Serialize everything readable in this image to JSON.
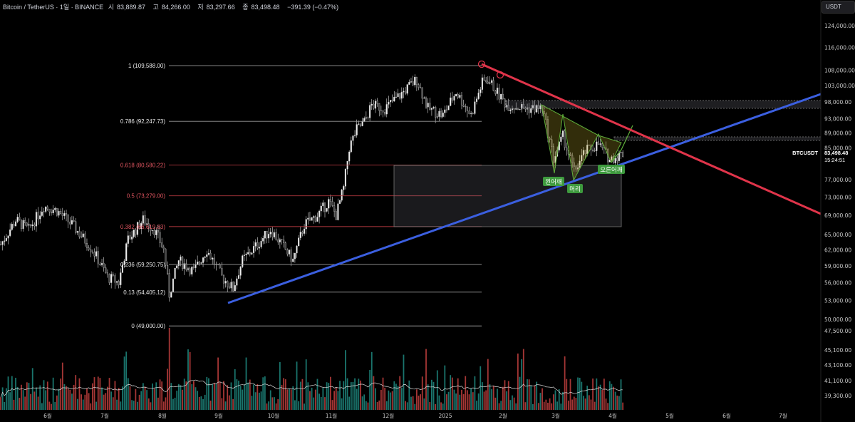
{
  "header": {
    "symbol": "Bitcoin / TetherUS · 1일 · BINANCE",
    "open_label": "시",
    "open": "83,889.87",
    "high_label": "고",
    "high": "84,266.00",
    "low_label": "저",
    "low": "83,297.66",
    "close_label": "종",
    "close": "83,498.48",
    "change": "−391.39 (−0.47%)"
  },
  "currency_button": "USDT",
  "last_price": {
    "symbol": "BTCUSDT",
    "price": "83,498.48",
    "countdown": "15:24:51"
  },
  "colors": {
    "up": "#26a69a",
    "down": "#ef5350",
    "fib_neutral": "#9a9a9a",
    "fib_red": "#b2383f",
    "trend_blue": "#3b5fe0",
    "trend_red": "#e0344a",
    "pattern": "#5fae3a"
  },
  "chart_data": {
    "type": "candlestick",
    "scale": "log",
    "price_axis_labels": [
      "124,000.00",
      "116,000.00",
      "108,000.00",
      "103,000.00",
      "98,000.00",
      "93,000.00",
      "89,000.00",
      "85,000.00",
      "77,000.00",
      "73,000.00",
      "69,000.00",
      "65,000.00",
      "62,000.00",
      "59,000.00",
      "56,000.00",
      "53,000.00",
      "50,000.00"
    ],
    "volume_axis_labels": [
      "47,500.00",
      "45,100.00",
      "43,100.00",
      "41,100.00",
      "39,300.00"
    ],
    "time_axis_labels": [
      "6월",
      "7월",
      "8월",
      "9월",
      "10월",
      "11월",
      "12월",
      "2025",
      "2월",
      "3월",
      "4월",
      "5월",
      "6월",
      "7월"
    ],
    "price_path_day_close": [
      [
        0,
        63000
      ],
      [
        8,
        68000
      ],
      [
        15,
        66000
      ],
      [
        23,
        71000
      ],
      [
        30,
        70000
      ],
      [
        38,
        67000
      ],
      [
        49,
        62000
      ],
      [
        57,
        57000
      ],
      [
        63,
        56000
      ],
      [
        68,
        64000
      ],
      [
        76,
        68000
      ],
      [
        82,
        66000
      ],
      [
        87,
        62000
      ],
      [
        90,
        54000
      ],
      [
        95,
        60000
      ],
      [
        103,
        58000
      ],
      [
        110,
        62000
      ],
      [
        118,
        57000
      ],
      [
        124,
        55000
      ],
      [
        129,
        60000
      ],
      [
        137,
        63000
      ],
      [
        144,
        66000
      ],
      [
        152,
        62000
      ],
      [
        156,
        60000
      ],
      [
        162,
        67000
      ],
      [
        169,
        69000
      ],
      [
        175,
        72000
      ],
      [
        179,
        69000
      ],
      [
        183,
        75000
      ],
      [
        186,
        85000
      ],
      [
        190,
        90000
      ],
      [
        194,
        92000
      ],
      [
        198,
        97000
      ],
      [
        205,
        96000
      ],
      [
        213,
        100000
      ],
      [
        222,
        105000
      ],
      [
        228,
        96000
      ],
      [
        236,
        94000
      ],
      [
        243,
        101000
      ],
      [
        251,
        94000
      ],
      [
        257,
        104000
      ],
      [
        260,
        105000
      ],
      [
        266,
        100000
      ],
      [
        270,
        97000
      ],
      [
        281,
        96000
      ],
      [
        289,
        96000
      ],
      [
        295,
        82000
      ],
      [
        300,
        88000
      ],
      [
        306,
        79000
      ],
      [
        312,
        84000
      ],
      [
        319,
        86000
      ],
      [
        325,
        82000
      ],
      [
        332,
        83498
      ]
    ],
    "fib_levels": [
      {
        "label": "1 (109,588.00)",
        "price": 109588,
        "red": false
      },
      {
        "label": "0.786 (92,247.73)",
        "price": 92247.73,
        "red": false
      },
      {
        "label": "0.618 (80,580.22)",
        "price": 80580.22,
        "red": true
      },
      {
        "label": "0.5 (73,279.00)",
        "price": 73279,
        "red": true
      },
      {
        "label": "0.382 (66,619.83)",
        "price": 66619.83,
        "red": true
      },
      {
        "label": "0.236 (59,250.75)",
        "price": 59250.75,
        "red": false
      },
      {
        "label": "0.13 (54,405.12)",
        "price": 54405.12,
        "red": false
      },
      {
        "label": "0 (49,000.00)",
        "price": 49000,
        "red": false
      }
    ],
    "pattern_labels": [
      "왼어깨",
      "머리",
      "오른어깨"
    ]
  }
}
